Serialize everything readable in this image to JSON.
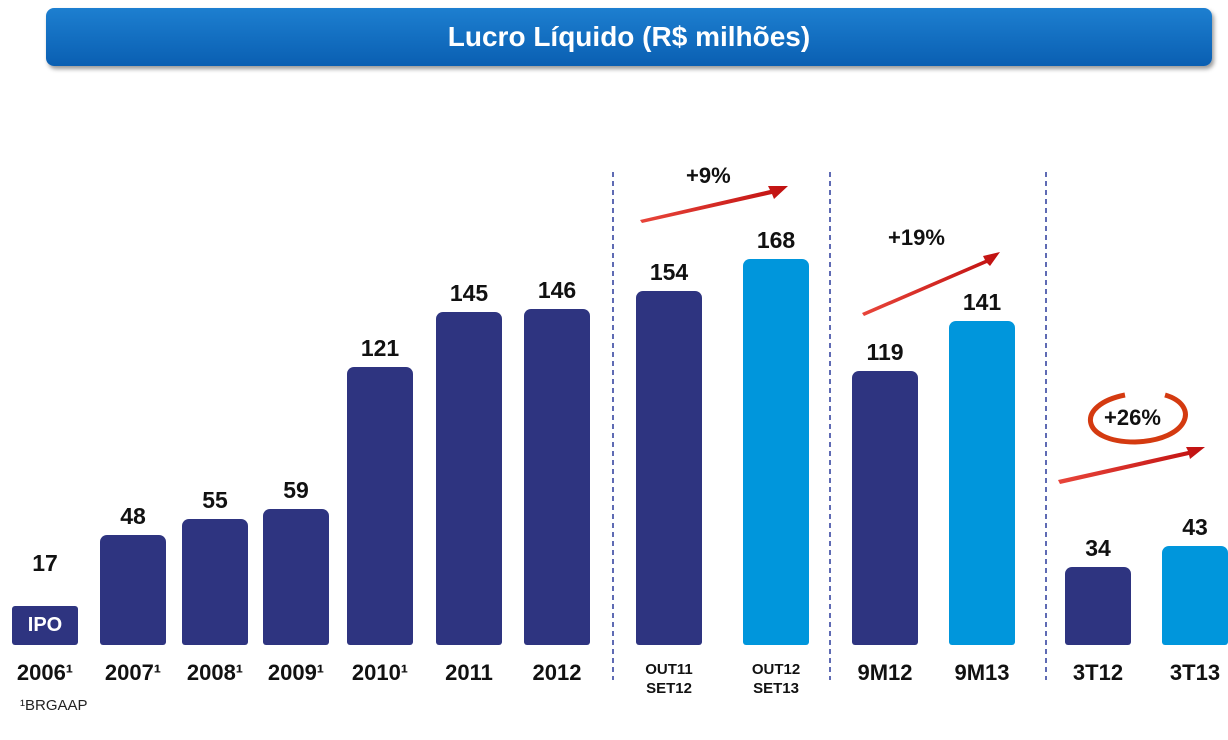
{
  "chart_data": {
    "type": "bar",
    "title": "Lucro Líquido (R$ milhões)",
    "categories": [
      "2006¹",
      "2007¹",
      "2008¹",
      "2009¹",
      "2010¹",
      "2011",
      "2012",
      "OUT11 SET12",
      "OUT12 SET13",
      "9M12",
      "9M13",
      "3T12",
      "3T13"
    ],
    "values": [
      17,
      48,
      55,
      59,
      121,
      145,
      146,
      154,
      168,
      119,
      141,
      34,
      43
    ],
    "colors": [
      "#2e3480",
      "#2e3480",
      "#2e3480",
      "#2e3480",
      "#2e3480",
      "#2e3480",
      "#2e3480",
      "#2e3480",
      "#0096dc",
      "#2e3480",
      "#0096dc",
      "#2e3480",
      "#0096dc"
    ],
    "annotations": [
      "IPO",
      "+9%",
      "+19%",
      "+26%"
    ],
    "footnote": "¹BRGAAP"
  }
}
